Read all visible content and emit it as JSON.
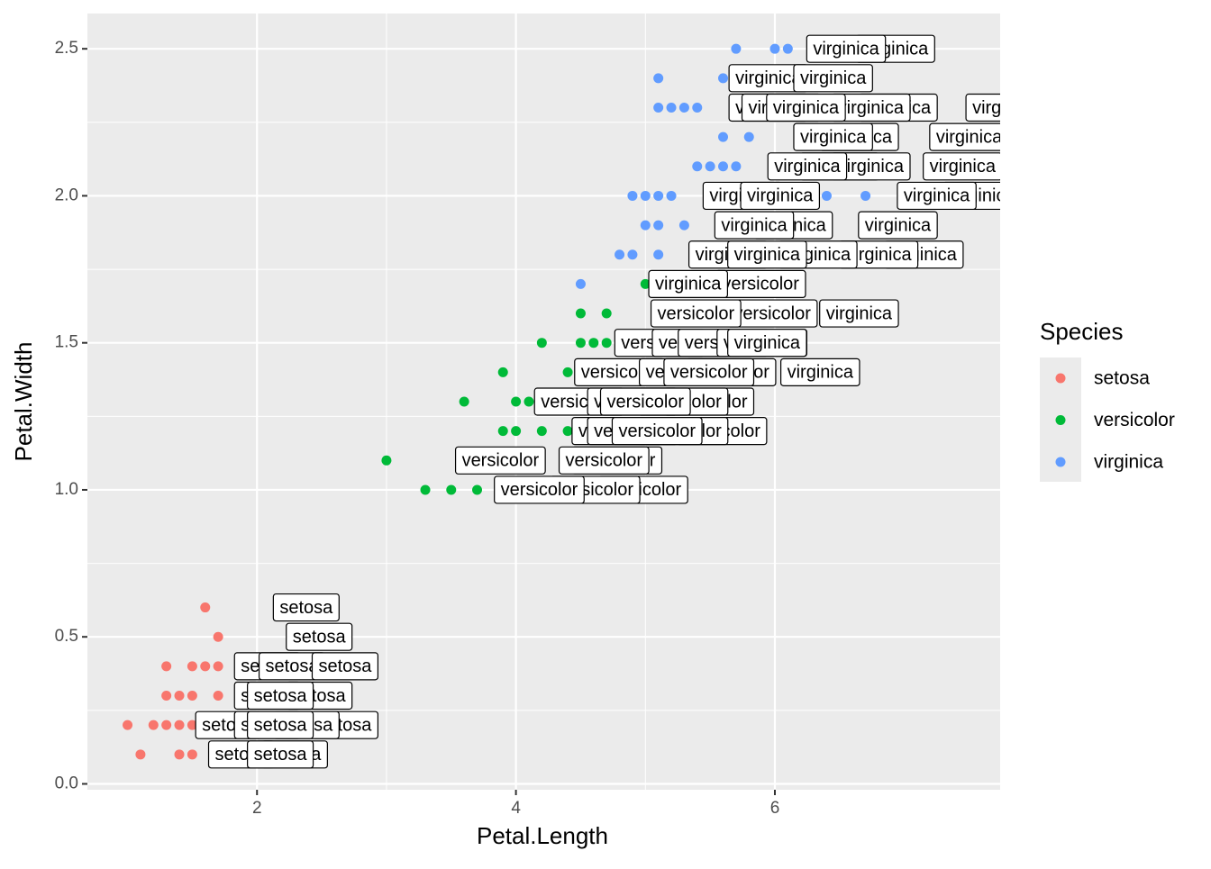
{
  "chart_data": {
    "type": "scatter",
    "x_label": "Petal.Length",
    "y_label": "Petal.Width",
    "xlim": [
      0.69,
      7.74
    ],
    "ylim": [
      -0.02,
      2.62
    ],
    "xticks": [
      2,
      4,
      6
    ],
    "yticks": [
      {
        "value": 0,
        "label": "0.0"
      },
      {
        "value": 0.5,
        "label": "0.5"
      },
      {
        "value": 1,
        "label": "1.0"
      },
      {
        "value": 1.5,
        "label": "1.5"
      },
      {
        "value": 2,
        "label": "2.0"
      },
      {
        "value": 2.5,
        "label": "2.5"
      }
    ],
    "grid": true,
    "legend_title": "Species",
    "legend_position": "right",
    "series": [
      {
        "name": "setosa",
        "color": "#F8766D",
        "x": [
          1.6,
          1.7,
          1.3,
          1.5,
          1.6,
          1.7,
          1.3,
          1.4,
          1.5,
          1.7,
          1.0,
          1.2,
          1.3,
          1.4,
          1.5,
          1.6,
          1.1,
          1.4,
          1.5
        ],
        "values": [
          0.6,
          0.5,
          0.4,
          0.4,
          0.4,
          0.4,
          0.3,
          0.3,
          0.3,
          0.3,
          0.2,
          0.2,
          0.2,
          0.2,
          0.2,
          0.2,
          0.1,
          0.1,
          0.1
        ]
      },
      {
        "name": "versicolor",
        "color": "#00BA38",
        "x": [
          3.0,
          3.3,
          3.5,
          3.7,
          3.6,
          3.9,
          3.9,
          4.0,
          4.2,
          4.4,
          4.0,
          4.1,
          4.2,
          4.4,
          4.5,
          4.7,
          4.5,
          4.6,
          4.7,
          5.0
        ],
        "values": [
          1.1,
          1.0,
          1.0,
          1.0,
          1.3,
          1.4,
          1.2,
          1.2,
          1.2,
          1.2,
          1.3,
          1.3,
          1.5,
          1.4,
          1.6,
          1.6,
          1.5,
          1.5,
          1.5,
          1.7
        ]
      },
      {
        "name": "virginica",
        "color": "#619CFF",
        "x": [
          4.5,
          4.8,
          4.9,
          5.1,
          5.0,
          5.1,
          5.3,
          4.9,
          5.0,
          5.1,
          5.2,
          6.4,
          6.7,
          5.4,
          5.5,
          5.6,
          5.7,
          6.0,
          5.6,
          5.8,
          5.1,
          5.2,
          5.3,
          5.4,
          5.1,
          5.6,
          5.7,
          6.0,
          6.1
        ],
        "values": [
          1.7,
          1.8,
          1.8,
          1.8,
          1.9,
          1.9,
          1.9,
          2.0,
          2.0,
          2.0,
          2.0,
          2.0,
          2.0,
          2.1,
          2.1,
          2.1,
          2.1,
          2.1,
          2.2,
          2.2,
          2.3,
          2.3,
          2.3,
          2.3,
          2.4,
          2.4,
          2.5,
          2.5,
          2.5
        ]
      }
    ],
    "labels": [
      {
        "text": "setosa",
        "x": 2.38,
        "y": 0.6
      },
      {
        "text": "setosa",
        "x": 2.48,
        "y": 0.5
      },
      {
        "text": "setosa",
        "x": 2.08,
        "y": 0.4
      },
      {
        "text": "setosa",
        "x": 2.27,
        "y": 0.4
      },
      {
        "text": "setosa",
        "x": 2.68,
        "y": 0.4
      },
      {
        "text": "setosa",
        "x": 2.48,
        "y": 0.3
      },
      {
        "text": "setosa",
        "x": 2.08,
        "y": 0.3
      },
      {
        "text": "setosa",
        "x": 2.18,
        "y": 0.3
      },
      {
        "text": "setosa",
        "x": 2.68,
        "y": 0.2
      },
      {
        "text": "setosa",
        "x": 1.78,
        "y": 0.2
      },
      {
        "text": "setosa",
        "x": 2.38,
        "y": 0.2
      },
      {
        "text": "setosa",
        "x": 2.08,
        "y": 0.2
      },
      {
        "text": "setosa",
        "x": 2.18,
        "y": 0.2
      },
      {
        "text": "setosa",
        "x": 2.29,
        "y": 0.1
      },
      {
        "text": "setosa",
        "x": 1.88,
        "y": 0.1
      },
      {
        "text": "setosa",
        "x": 2.18,
        "y": 0.1
      },
      {
        "text": "versicolor",
        "x": 3.88,
        "y": 1.1
      },
      {
        "text": "versicolor",
        "x": 4.78,
        "y": 1.1
      },
      {
        "text": "versicolor",
        "x": 4.68,
        "y": 1.1
      },
      {
        "text": "versicolor",
        "x": 4.98,
        "y": 1.0
      },
      {
        "text": "versicolor",
        "x": 4.61,
        "y": 1.0
      },
      {
        "text": "versicolor",
        "x": 4.18,
        "y": 1.0
      },
      {
        "text": "versicolor",
        "x": 5.59,
        "y": 1.2
      },
      {
        "text": "versicolor",
        "x": 5.29,
        "y": 1.2
      },
      {
        "text": "versicolor",
        "x": 4.78,
        "y": 1.2
      },
      {
        "text": "versicolor",
        "x": 4.9,
        "y": 1.2
      },
      {
        "text": "versicolor",
        "x": 5.09,
        "y": 1.2
      },
      {
        "text": "versicolor",
        "x": 5.49,
        "y": 1.3
      },
      {
        "text": "versicolor",
        "x": 5.29,
        "y": 1.3
      },
      {
        "text": "versicolor",
        "x": 4.49,
        "y": 1.3
      },
      {
        "text": "versicolor",
        "x": 4.9,
        "y": 1.3
      },
      {
        "text": "versicolor",
        "x": 5.0,
        "y": 1.3
      },
      {
        "text": "versicolor",
        "x": 5.66,
        "y": 1.4
      },
      {
        "text": "versicolor",
        "x": 4.8,
        "y": 1.4
      },
      {
        "text": "versicolor",
        "x": 5.3,
        "y": 1.4
      },
      {
        "text": "versicolor",
        "x": 5.49,
        "y": 1.4
      },
      {
        "text": "virginica",
        "x": 6.35,
        "y": 1.4
      },
      {
        "text": "versicolor",
        "x": 5.11,
        "y": 1.5
      },
      {
        "text": "versicolor",
        "x": 5.4,
        "y": 1.5
      },
      {
        "text": "versicolor",
        "x": 5.6,
        "y": 1.5
      },
      {
        "text": "versicolor",
        "x": 5.9,
        "y": 1.5
      },
      {
        "text": "virginica",
        "x": 5.94,
        "y": 1.5
      },
      {
        "text": "versicolor",
        "x": 5.98,
        "y": 1.6
      },
      {
        "text": "versicolor",
        "x": 5.39,
        "y": 1.6
      },
      {
        "text": "virginica",
        "x": 6.65,
        "y": 1.6
      },
      {
        "text": "versicolor",
        "x": 5.89,
        "y": 1.7
      },
      {
        "text": "virginica",
        "x": 5.33,
        "y": 1.7
      },
      {
        "text": "virginica",
        "x": 7.15,
        "y": 1.8
      },
      {
        "text": "virginica",
        "x": 6.8,
        "y": 1.8
      },
      {
        "text": "virginica",
        "x": 6.33,
        "y": 1.8
      },
      {
        "text": "virginica",
        "x": 5.64,
        "y": 1.8
      },
      {
        "text": "virginica",
        "x": 5.94,
        "y": 1.8
      },
      {
        "text": "virginica",
        "x": 6.14,
        "y": 1.9
      },
      {
        "text": "virginica",
        "x": 5.84,
        "y": 1.9
      },
      {
        "text": "virginica",
        "x": 6.95,
        "y": 1.9
      },
      {
        "text": "virginica",
        "x": 7.6,
        "y": 2.0
      },
      {
        "text": "virginica",
        "x": 5.75,
        "y": 2.0
      },
      {
        "text": "virginica",
        "x": 6.04,
        "y": 2.0
      },
      {
        "text": "virginica",
        "x": 7.25,
        "y": 2.0
      },
      {
        "text": "virginica",
        "x": 6.5,
        "y": 2.1
      },
      {
        "text": "virginica",
        "x": 6.74,
        "y": 2.1
      },
      {
        "text": "virginica",
        "x": 6.25,
        "y": 2.1
      },
      {
        "text": "virginica",
        "x": 7.45,
        "y": 2.1
      },
      {
        "text": "virginica",
        "x": 6.65,
        "y": 2.2
      },
      {
        "text": "virginica",
        "x": 6.45,
        "y": 2.2
      },
      {
        "text": "virginica",
        "x": 7.5,
        "y": 2.2
      },
      {
        "text": "virginica",
        "x": 6.95,
        "y": 2.3
      },
      {
        "text": "virginica",
        "x": 6.74,
        "y": 2.3
      },
      {
        "text": "virginica",
        "x": 5.95,
        "y": 2.3
      },
      {
        "text": "virginica",
        "x": 6.05,
        "y": 2.3
      },
      {
        "text": "virginica",
        "x": 6.24,
        "y": 2.3
      },
      {
        "text": "virginica",
        "x": 7.78,
        "y": 2.3
      },
      {
        "text": "virginica",
        "x": 5.95,
        "y": 2.4
      },
      {
        "text": "virginica",
        "x": 6.45,
        "y": 2.4
      },
      {
        "text": "virginica",
        "x": 6.93,
        "y": 2.5
      },
      {
        "text": "virginica",
        "x": 6.55,
        "y": 2.5
      }
    ]
  }
}
